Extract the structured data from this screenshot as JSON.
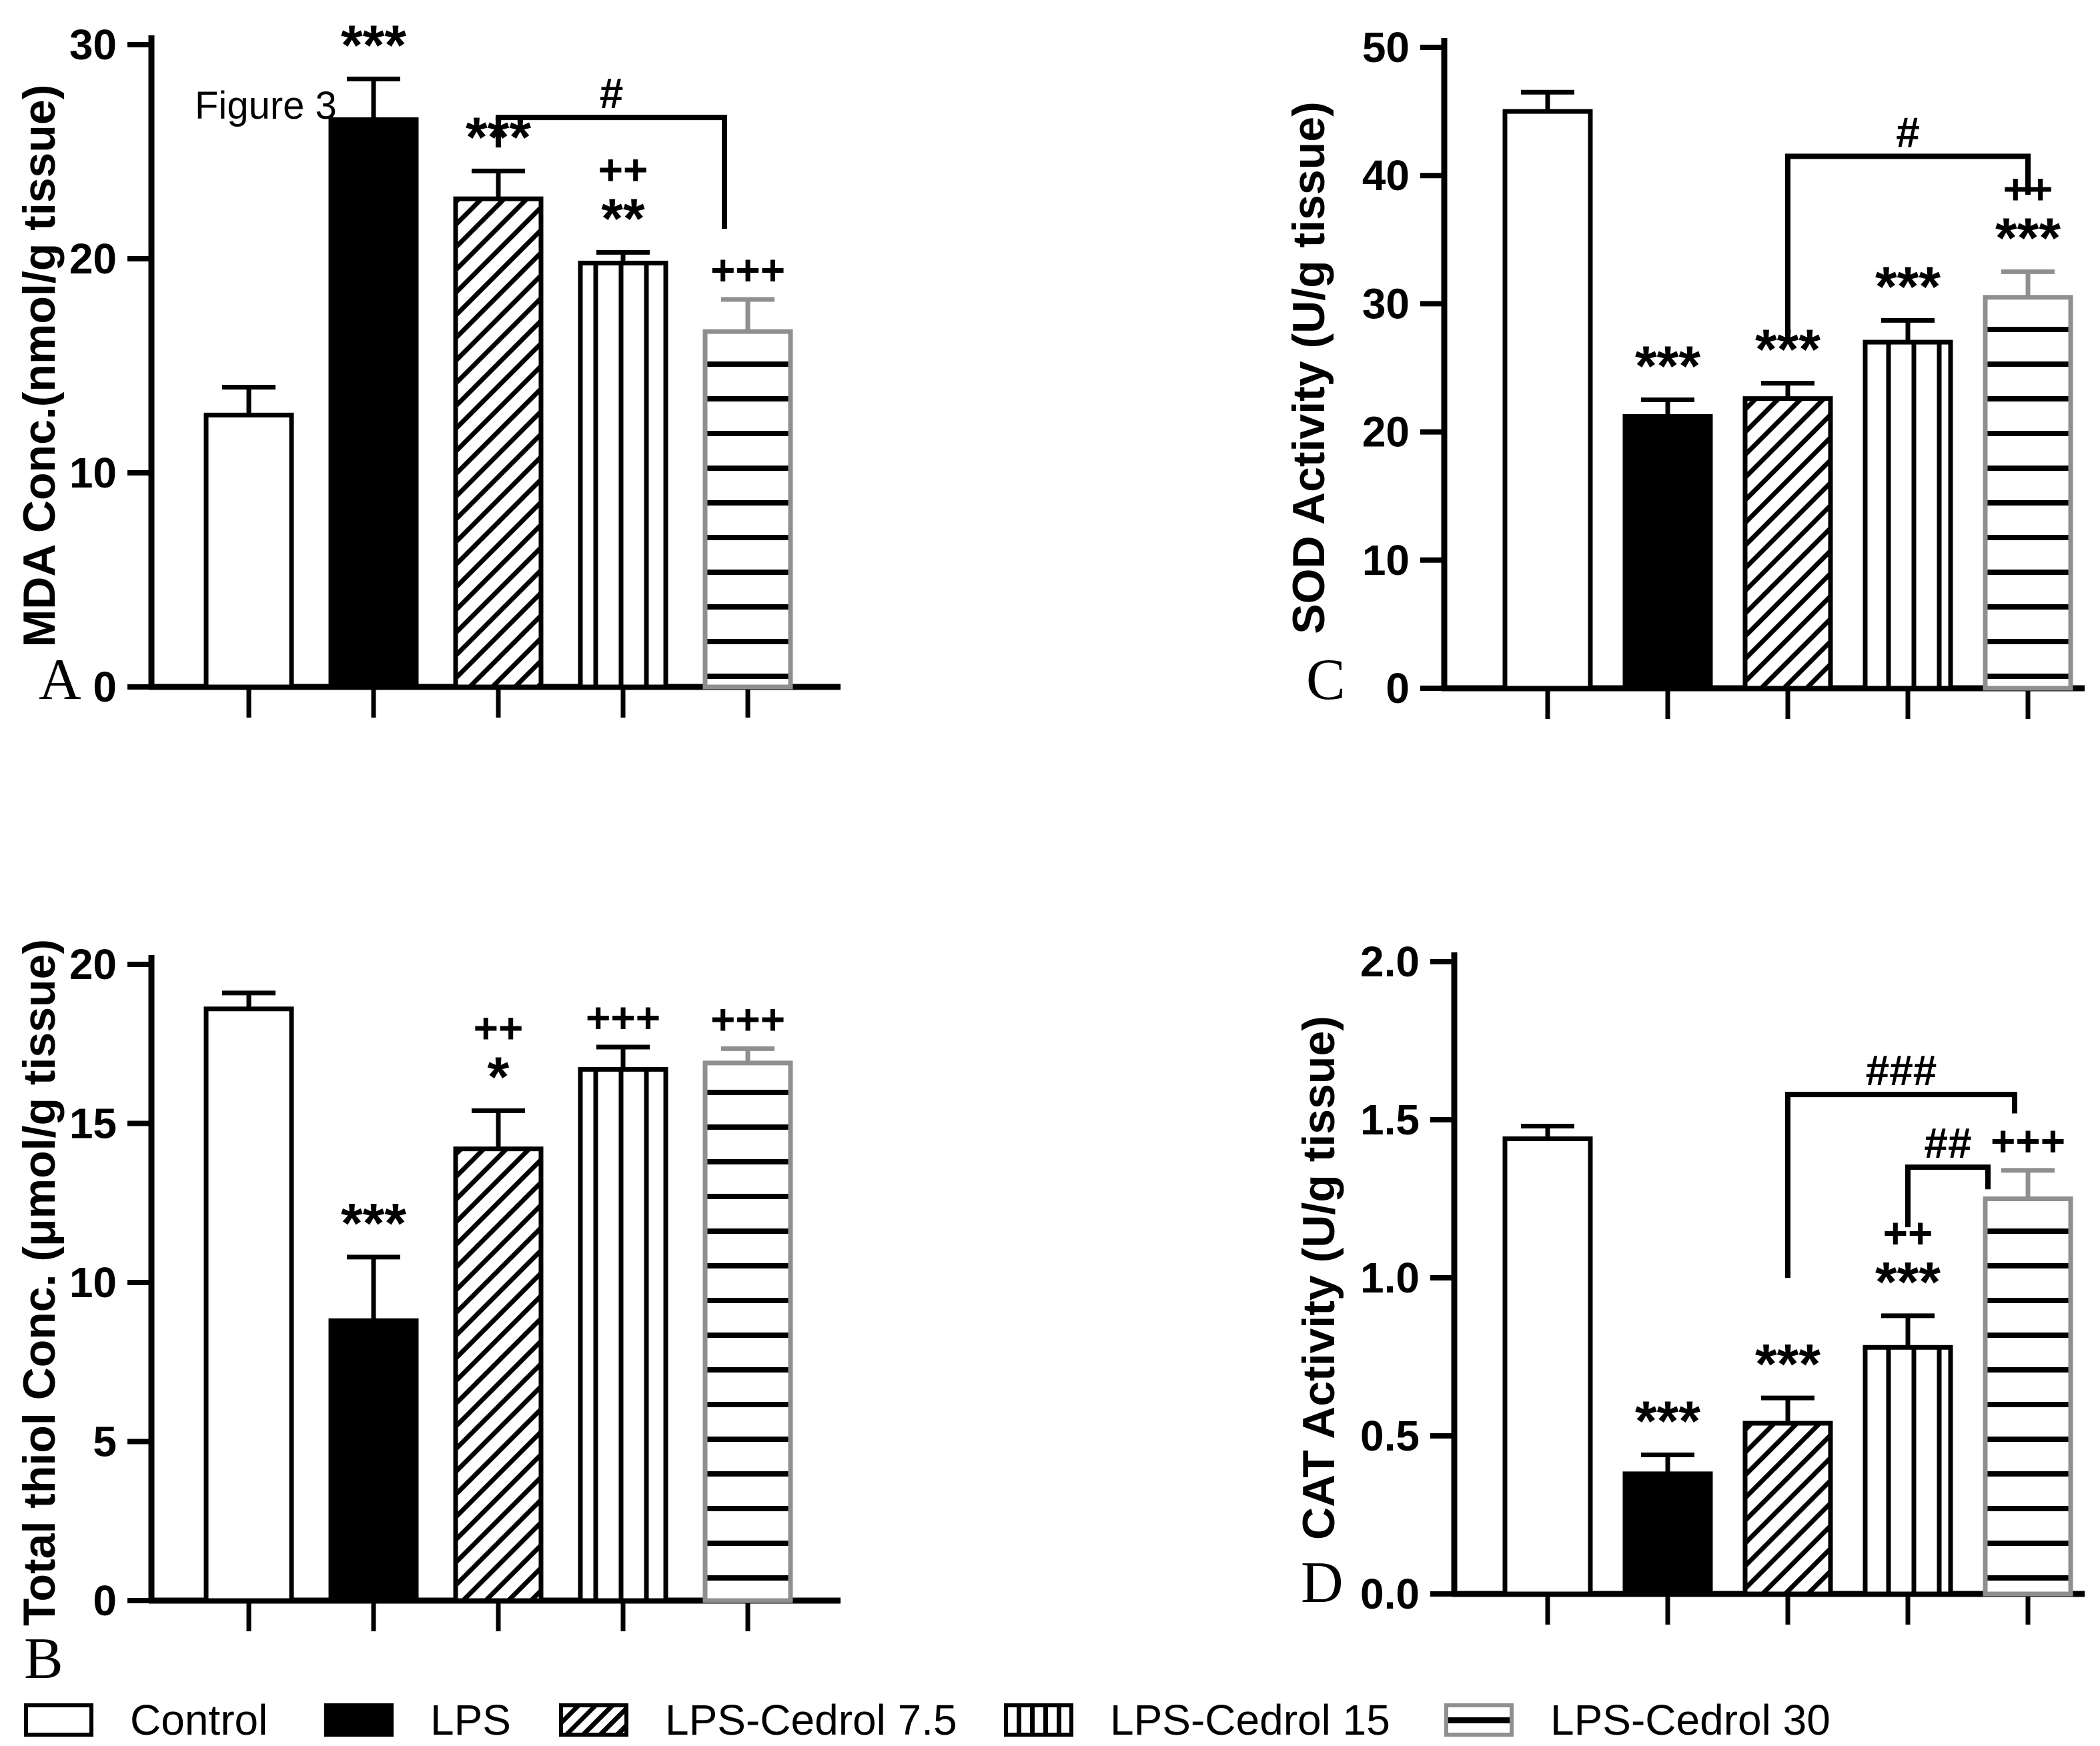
{
  "page": {
    "background": "#ffffff"
  },
  "figure": {
    "inner_title": "Figure 3"
  },
  "colors": {
    "bar_fill_black": "#000000",
    "bar_edge_black": "#000000",
    "bar_edge_gray": "#8f8f8f",
    "error_gray": "#8f8f8f",
    "text": "#000000",
    "background": "#ffffff"
  },
  "legend": {
    "items": [
      {
        "label": "Control",
        "pattern": "open"
      },
      {
        "label": "LPS",
        "pattern": "solid"
      },
      {
        "label": "LPS-Cedrol 7.5",
        "pattern": "diagonal-hatch"
      },
      {
        "label": "LPS-Cedrol 15",
        "pattern": "vertical-stripes"
      },
      {
        "label": "LPS-Cedrol 30",
        "pattern": "horizontal-stripes"
      }
    ]
  },
  "chart_data": [
    {
      "id": "A",
      "type": "bar",
      "panel_label": "A",
      "inner_title": "Figure 3",
      "ylabel": "MDA Conc.(nmol/g tissue)",
      "xlabel": "",
      "ylim": [
        0,
        30
      ],
      "yticks": [
        0,
        10,
        20,
        30
      ],
      "ytick_labels": [
        "0",
        "10",
        "20",
        "30"
      ],
      "grid": false,
      "categories": [
        "Control",
        "LPS",
        "LPS-Cedrol 7.5",
        "LPS-Cedrol 15",
        "LPS-Cedrol 30"
      ],
      "patterns": [
        "open",
        "solid",
        "diagonal-hatch",
        "vertical-stripes",
        "horizontal-stripes"
      ],
      "values": [
        12.7,
        26.5,
        22.8,
        19.8,
        16.6
      ],
      "errors": [
        1.3,
        1.9,
        1.3,
        0.5,
        1.5
      ],
      "annotations": [
        [],
        [
          "***"
        ],
        [
          "***"
        ],
        [
          "**",
          "++"
        ],
        [
          "+++"
        ]
      ],
      "brackets": [
        {
          "label": "#",
          "from": 2,
          "to": 4,
          "from_offset": 0,
          "to_offset": -35,
          "y": 26.6,
          "left_end": 25.2,
          "right_end": 21.4
        }
      ]
    },
    {
      "id": "B",
      "type": "bar",
      "panel_label": "B",
      "ylabel": "Total thiol Conc. (μmol/g tissue)",
      "xlabel": "",
      "ylim": [
        0,
        20
      ],
      "yticks": [
        0,
        5,
        10,
        15,
        20
      ],
      "ytick_labels": [
        "0",
        "5",
        "10",
        "15",
        "20"
      ],
      "grid": false,
      "categories": [
        "Control",
        "LPS",
        "LPS-Cedrol 7.5",
        "LPS-Cedrol 15",
        "LPS-Cedrol 30"
      ],
      "patterns": [
        "open",
        "solid",
        "diagonal-hatch",
        "vertical-stripes",
        "horizontal-stripes"
      ],
      "values": [
        18.6,
        8.8,
        14.2,
        16.7,
        16.9
      ],
      "errors": [
        0.5,
        2.0,
        1.2,
        0.7,
        0.45
      ],
      "annotations": [
        [],
        [
          "***"
        ],
        [
          "*",
          "++"
        ],
        [
          "+++"
        ],
        [
          "+++"
        ]
      ],
      "brackets": []
    },
    {
      "id": "C",
      "type": "bar",
      "panel_label": "C",
      "ylabel": "SOD Activity (U/g tissue)",
      "xlabel": "",
      "ylim": [
        0,
        50
      ],
      "yticks": [
        0,
        10,
        20,
        30,
        40,
        50
      ],
      "ytick_labels": [
        "0",
        "10",
        "20",
        "30",
        "40",
        "50"
      ],
      "grid": false,
      "categories": [
        "Control",
        "LPS",
        "LPS-Cedrol 7.5",
        "LPS-Cedrol 15",
        "LPS-Cedrol 30"
      ],
      "patterns": [
        "open",
        "solid",
        "diagonal-hatch",
        "vertical-stripes",
        "horizontal-stripes"
      ],
      "values": [
        45.0,
        21.2,
        22.6,
        27.0,
        30.5
      ],
      "errors": [
        1.5,
        1.3,
        1.2,
        1.7,
        2.0
      ],
      "annotations": [
        [],
        [
          "***"
        ],
        [
          "***"
        ],
        [
          "***"
        ],
        [
          "***",
          "++"
        ]
      ],
      "brackets": [
        {
          "label": "#",
          "from": 2,
          "to": 4,
          "from_offset": 0,
          "to_offset": 0,
          "y": 41.5,
          "left_end": 27.0,
          "right_end": 38.5
        }
      ]
    },
    {
      "id": "D",
      "type": "bar",
      "panel_label": "D",
      "ylabel": "CAT Activity (U/g tissue)",
      "xlabel": "",
      "ylim": [
        0,
        2.0
      ],
      "yticks": [
        0,
        0.5,
        1.0,
        1.5,
        2.0
      ],
      "ytick_labels": [
        "0.0",
        "0.5",
        "1.0",
        "1.5",
        "2.0"
      ],
      "grid": false,
      "categories": [
        "Control",
        "LPS",
        "LPS-Cedrol 7.5",
        "LPS-Cedrol 15",
        "LPS-Cedrol 30"
      ],
      "patterns": [
        "open",
        "solid",
        "diagonal-hatch",
        "vertical-stripes",
        "horizontal-stripes"
      ],
      "values": [
        1.44,
        0.38,
        0.54,
        0.78,
        1.25
      ],
      "errors": [
        0.04,
        0.06,
        0.08,
        0.1,
        0.09
      ],
      "annotations": [
        [],
        [
          "***"
        ],
        [
          "***"
        ],
        [
          "***",
          "++"
        ],
        [
          "+++"
        ]
      ],
      "brackets": [
        {
          "label": "###",
          "from": 2,
          "to": 4,
          "from_offset": 0,
          "to_offset": -20,
          "y": 1.58,
          "left_end": 1.0,
          "right_end": 1.52
        },
        {
          "label": "##",
          "from": 3,
          "to": 4,
          "from_offset": 0,
          "to_offset": -60,
          "y": 1.35,
          "left_end": 1.16,
          "right_end": 1.28
        }
      ]
    }
  ]
}
